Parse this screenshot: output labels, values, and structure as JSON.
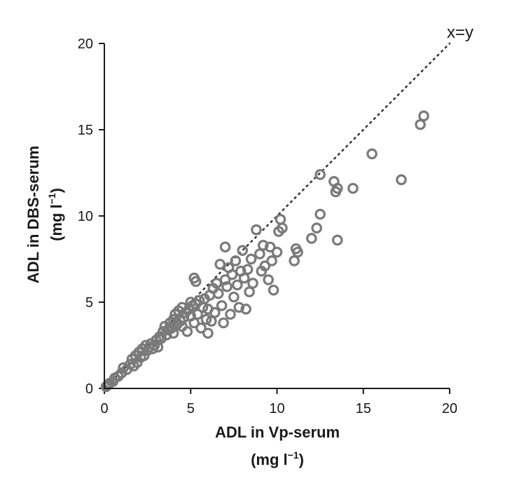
{
  "chart_data": {
    "type": "scatter",
    "title": "",
    "xlabel": "ADL in Vp-serum",
    "xlabel_unit": "(mg l",
    "xlabel_unit_sup": "−1",
    "xlabel_unit_close": ")",
    "ylabel": "ADL in DBS-serum",
    "ylabel_unit": "(mg l",
    "ylabel_unit_sup": "−1",
    "ylabel_unit_close": ")",
    "xlim": [
      0,
      20
    ],
    "ylim": [
      0,
      20
    ],
    "xticks": [
      "0",
      "5",
      "10",
      "15",
      "20"
    ],
    "yticks": [
      "0",
      "5",
      "10",
      "15",
      "20"
    ],
    "reference_line": {
      "label": "x=y",
      "style": "dotted"
    },
    "marker": {
      "shape": "open-circle",
      "color": "#7a7a7a"
    },
    "grid": false,
    "legend": "none",
    "points": [
      [
        0.1,
        0.1
      ],
      [
        0.2,
        0.2
      ],
      [
        0.3,
        0.3
      ],
      [
        0.5,
        0.4
      ],
      [
        0.6,
        0.6
      ],
      [
        0.8,
        0.7
      ],
      [
        1.0,
        0.9
      ],
      [
        1.1,
        1.2
      ],
      [
        1.3,
        1.1
      ],
      [
        1.5,
        1.4
      ],
      [
        1.6,
        1.7
      ],
      [
        1.7,
        1.3
      ],
      [
        1.8,
        1.9
      ],
      [
        1.9,
        1.5
      ],
      [
        2.0,
        2.1
      ],
      [
        2.1,
        1.8
      ],
      [
        2.2,
        2.3
      ],
      [
        2.3,
        1.9
      ],
      [
        2.4,
        2.5
      ],
      [
        2.5,
        2.2
      ],
      [
        2.6,
        2.4
      ],
      [
        2.7,
        2.6
      ],
      [
        2.8,
        2.3
      ],
      [
        2.9,
        2.5
      ],
      [
        3.0,
        2.8
      ],
      [
        3.1,
        2.4
      ],
      [
        3.2,
        3.0
      ],
      [
        3.3,
        2.9
      ],
      [
        3.4,
        3.3
      ],
      [
        3.5,
        3.6
      ],
      [
        3.6,
        3.1
      ],
      [
        3.7,
        3.4
      ],
      [
        3.8,
        3.8
      ],
      [
        3.9,
        3.5
      ],
      [
        4.0,
        4.0
      ],
      [
        4.0,
        3.2
      ],
      [
        4.1,
        4.3
      ],
      [
        4.2,
        3.7
      ],
      [
        4.3,
        4.5
      ],
      [
        4.4,
        3.9
      ],
      [
        4.5,
        4.7
      ],
      [
        4.5,
        3.6
      ],
      [
        4.6,
        4.1
      ],
      [
        4.7,
        4.4
      ],
      [
        4.8,
        3.3
      ],
      [
        4.9,
        4.6
      ],
      [
        5.0,
        4.2
      ],
      [
        5.0,
        5.0
      ],
      [
        5.1,
        4.8
      ],
      [
        5.2,
        3.8
      ],
      [
        5.2,
        6.4
      ],
      [
        5.3,
        6.2
      ],
      [
        5.3,
        4.9
      ],
      [
        5.4,
        4.3
      ],
      [
        5.5,
        5.1
      ],
      [
        5.6,
        3.5
      ],
      [
        5.7,
        4.7
      ],
      [
        5.8,
        5.2
      ],
      [
        5.9,
        4.0
      ],
      [
        6.0,
        3.2
      ],
      [
        6.0,
        4.6
      ],
      [
        6.1,
        5.4
      ],
      [
        6.2,
        3.9
      ],
      [
        6.3,
        5.8
      ],
      [
        6.4,
        4.4
      ],
      [
        6.5,
        6.1
      ],
      [
        6.6,
        5.5
      ],
      [
        6.7,
        7.2
      ],
      [
        6.8,
        4.8
      ],
      [
        6.9,
        3.8
      ],
      [
        7.0,
        6.3
      ],
      [
        7.0,
        8.2
      ],
      [
        7.1,
        5.9
      ],
      [
        7.2,
        7.0
      ],
      [
        7.3,
        4.3
      ],
      [
        7.4,
        6.6
      ],
      [
        7.5,
        5.3
      ],
      [
        7.6,
        7.4
      ],
      [
        7.7,
        6.0
      ],
      [
        7.8,
        4.7
      ],
      [
        7.9,
        6.8
      ],
      [
        8.0,
        8.0
      ],
      [
        8.1,
        6.4
      ],
      [
        8.2,
        4.6
      ],
      [
        8.3,
        6.9
      ],
      [
        8.4,
        5.6
      ],
      [
        8.5,
        7.5
      ],
      [
        8.6,
        6.1
      ],
      [
        8.8,
        9.2
      ],
      [
        9.0,
        7.8
      ],
      [
        9.1,
        6.8
      ],
      [
        9.2,
        8.3
      ],
      [
        9.3,
        7.1
      ],
      [
        9.5,
        6.3
      ],
      [
        9.6,
        8.2
      ],
      [
        9.7,
        7.4
      ],
      [
        9.8,
        5.7
      ],
      [
        10.0,
        7.9
      ],
      [
        10.1,
        9.1
      ],
      [
        10.2,
        9.8
      ],
      [
        10.3,
        9.3
      ],
      [
        11.0,
        7.4
      ],
      [
        11.1,
        8.1
      ],
      [
        11.2,
        7.9
      ],
      [
        12.0,
        8.7
      ],
      [
        12.3,
        9.3
      ],
      [
        12.5,
        10.1
      ],
      [
        12.5,
        12.4
      ],
      [
        13.3,
        12.0
      ],
      [
        13.4,
        11.4
      ],
      [
        13.5,
        11.6
      ],
      [
        13.5,
        8.6
      ],
      [
        14.4,
        11.6
      ],
      [
        15.5,
        13.6
      ],
      [
        17.2,
        12.1
      ],
      [
        18.3,
        15.3
      ],
      [
        18.5,
        15.8
      ]
    ]
  }
}
